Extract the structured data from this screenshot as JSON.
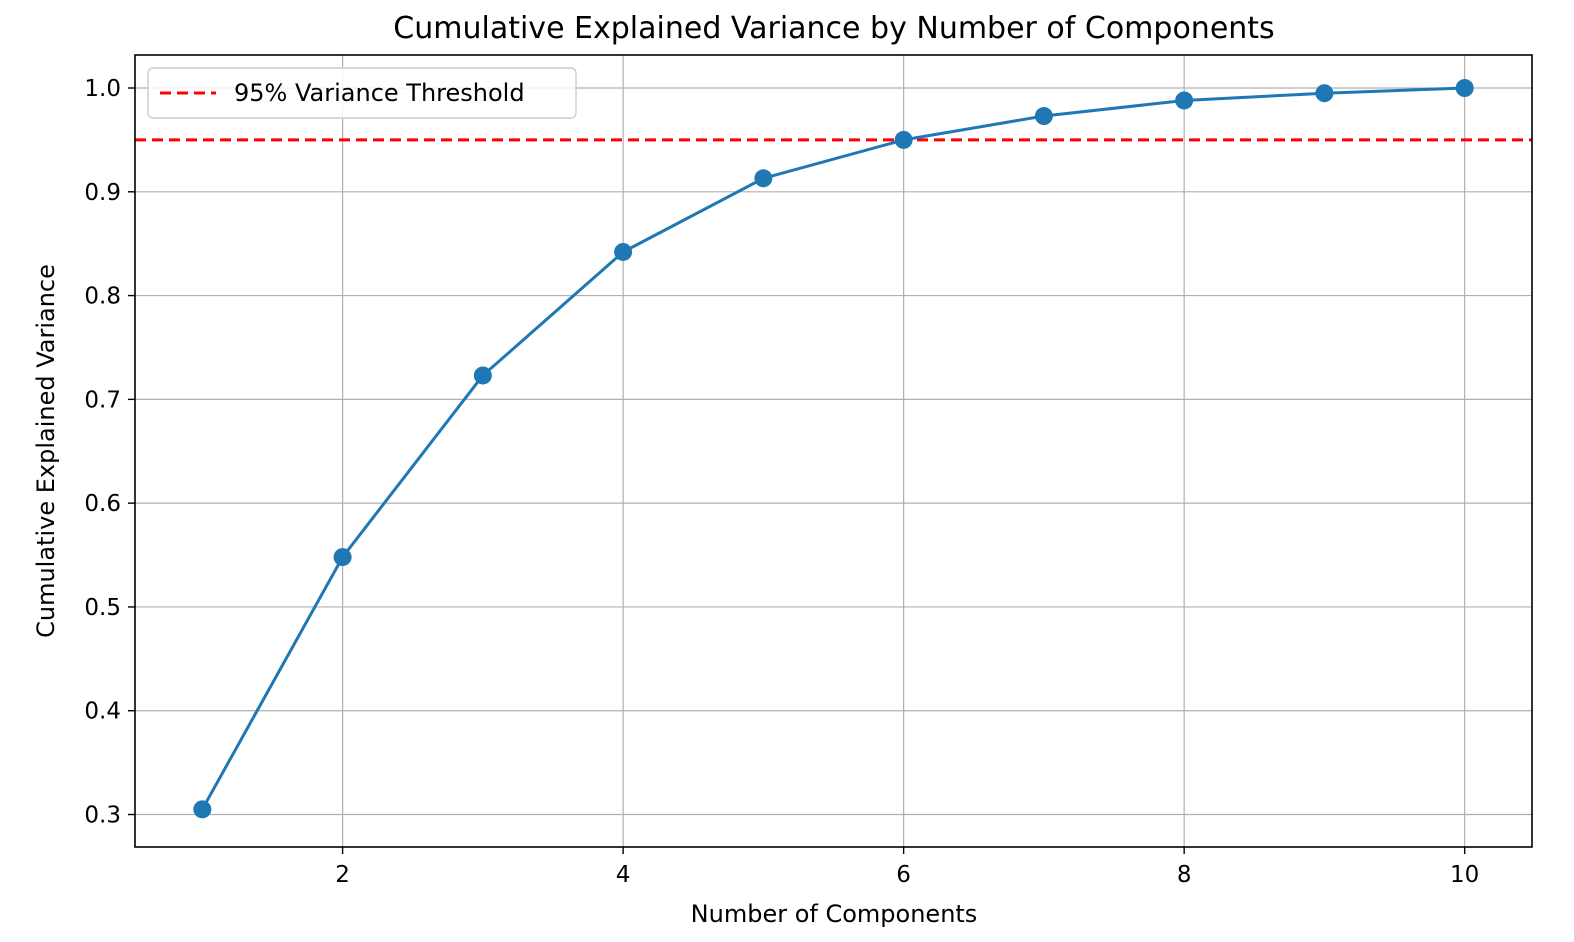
{
  "chart_data": {
    "type": "line",
    "title": "Cumulative Explained Variance by Number of Components",
    "xlabel": "Number of Components",
    "ylabel": "Cumulative Explained Variance",
    "x": [
      1,
      2,
      3,
      4,
      5,
      6,
      7,
      8,
      9,
      10
    ],
    "series": [
      {
        "values": [
          0.305,
          0.548,
          0.723,
          0.842,
          0.913,
          0.95,
          0.973,
          0.988,
          0.995,
          1.0
        ],
        "color": "#1f77b4",
        "marker": "circle"
      }
    ],
    "threshold": {
      "label": "95% Variance Threshold",
      "value": 0.95,
      "color": "#ff0000",
      "style": "dashed"
    },
    "xlim": [
      0.52,
      10.48
    ],
    "ylim": [
      0.2687,
      1.0318
    ],
    "xticks": [
      2,
      4,
      6,
      8,
      10
    ],
    "xtick_labels": [
      "2",
      "4",
      "6",
      "8",
      "10"
    ],
    "yticks": [
      0.3,
      0.4,
      0.5,
      0.6,
      0.7,
      0.8,
      0.9,
      1.0
    ],
    "ytick_labels": [
      "0.3",
      "0.4",
      "0.5",
      "0.6",
      "0.7",
      "0.8",
      "0.9",
      "1.0"
    ],
    "grid": true,
    "legend_position": "top-left"
  }
}
